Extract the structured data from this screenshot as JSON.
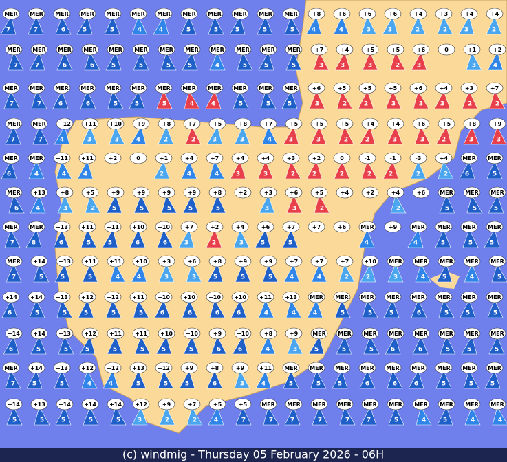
{
  "footer": "(c) windmig - Thursday 05 February 2026 - 06H",
  "palette": {
    "d": "#1f5fc8",
    "m": "#2f86e8",
    "l": "#4aa6ee",
    "r": "#e8404a",
    "n": "#1a3fb0"
  },
  "rows": [
    [
      [
        "MER",
        7,
        "d"
      ],
      [
        "MER",
        7,
        "d"
      ],
      [
        "MER",
        6,
        "d"
      ],
      [
        "MER",
        5,
        "d"
      ],
      [
        "MER",
        5,
        "d"
      ],
      [
        "MER",
        4,
        "m"
      ],
      [
        "MER",
        4,
        "m"
      ],
      [
        "MER",
        5,
        "d"
      ],
      [
        "MER",
        5,
        "d"
      ],
      [
        "MER",
        5,
        "d"
      ],
      [
        "MER",
        5,
        "d"
      ],
      [
        "MER",
        5,
        "d"
      ],
      [
        "+8",
        4,
        "m"
      ],
      [
        "+6",
        4,
        "m"
      ],
      [
        "+6",
        3,
        "l"
      ],
      [
        "+6",
        3,
        "l"
      ],
      [
        "+4",
        2,
        "l"
      ],
      [
        "+3",
        2,
        "l"
      ],
      [
        "+4",
        3,
        "l"
      ],
      [
        "+4",
        2,
        "l"
      ]
    ],
    [
      [
        "MER",
        7,
        "d"
      ],
      [
        "MER",
        7,
        "d"
      ],
      [
        "MER",
        6,
        "d"
      ],
      [
        "MER",
        6,
        "d"
      ],
      [
        "MER",
        5,
        "d"
      ],
      [
        "MER",
        5,
        "d"
      ],
      [
        "MER",
        5,
        "d"
      ],
      [
        "MER",
        5,
        "d"
      ],
      [
        "MER",
        4,
        "m"
      ],
      [
        "MER",
        5,
        "d"
      ],
      [
        "MER",
        5,
        "d"
      ],
      [
        "MER",
        5,
        "d"
      ],
      [
        "+7",
        3,
        "r"
      ],
      [
        "+4",
        3,
        "r"
      ],
      [
        "+5",
        3,
        "r"
      ],
      [
        "+5",
        2,
        "r"
      ],
      [
        "+6",
        3,
        "r"
      ],
      [
        "0",
        null,
        "n"
      ],
      [
        "+1",
        3,
        "l"
      ],
      [
        "+2",
        4,
        "m"
      ]
    ],
    [
      [
        "MER",
        7,
        "d"
      ],
      [
        "MER",
        7,
        "d"
      ],
      [
        "MER",
        6,
        "d"
      ],
      [
        "MER",
        6,
        "d"
      ],
      [
        "MER",
        5,
        "d"
      ],
      [
        "MER",
        5,
        "d"
      ],
      [
        "MER",
        5,
        "r"
      ],
      [
        "MER",
        4,
        "r"
      ],
      [
        "MER",
        4,
        "r"
      ],
      [
        "MER",
        5,
        "d"
      ],
      [
        "MER",
        5,
        "d"
      ],
      [
        "MER",
        5,
        "d"
      ],
      [
        "+6",
        3,
        "r"
      ],
      [
        "+5",
        2,
        "r"
      ],
      [
        "+5",
        2,
        "r"
      ],
      [
        "+5",
        3,
        "r"
      ],
      [
        "+6",
        3,
        "r"
      ],
      [
        "+4",
        3,
        "r"
      ],
      [
        "+3",
        2,
        "r"
      ],
      [
        "+7",
        2,
        "r"
      ]
    ],
    [
      [
        "MER",
        7,
        "d"
      ],
      [
        "MER",
        7,
        "d"
      ],
      [
        "+12",
        4,
        "m"
      ],
      [
        "+11",
        3,
        "l"
      ],
      [
        "+10",
        3,
        "l"
      ],
      [
        "+9",
        4,
        "m"
      ],
      [
        "+8",
        2,
        "l"
      ],
      [
        "+7",
        2,
        "r"
      ],
      [
        "+5",
        3,
        "l"
      ],
      [
        "+8",
        3,
        "l"
      ],
      [
        "+7",
        4,
        "m"
      ],
      [
        "+5",
        3,
        "r"
      ],
      [
        "+5",
        3,
        "r"
      ],
      [
        "+5",
        2,
        "r"
      ],
      [
        "+4",
        2,
        "r"
      ],
      [
        "+4",
        3,
        "r"
      ],
      [
        "+6",
        3,
        "r"
      ],
      [
        "+5",
        2,
        "r"
      ],
      [
        "+8",
        3,
        "r"
      ],
      [
        "+9",
        3,
        "r"
      ]
    ],
    [
      [
        "MER",
        6,
        "d"
      ],
      [
        "MER",
        4,
        "m"
      ],
      [
        "+11",
        4,
        "m"
      ],
      [
        "+11",
        4,
        "m"
      ],
      [
        "+2",
        null,
        "n"
      ],
      [
        "0",
        null,
        "n"
      ],
      [
        "+1",
        2,
        "l"
      ],
      [
        "+4",
        4,
        "m"
      ],
      [
        "+7",
        4,
        "m"
      ],
      [
        "+4",
        3,
        "r"
      ],
      [
        "+4",
        3,
        "r"
      ],
      [
        "+3",
        2,
        "r"
      ],
      [
        "+2",
        2,
        "r"
      ],
      [
        "0",
        2,
        "r"
      ],
      [
        "-1",
        2,
        "r"
      ],
      [
        "-1",
        2,
        "r"
      ],
      [
        "-3",
        2,
        "l"
      ],
      [
        "+4",
        2,
        "l"
      ],
      [
        "MER",
        6,
        "d"
      ],
      [
        "MER",
        5,
        "d"
      ]
    ],
    [
      [
        "MER",
        6,
        "d"
      ],
      [
        "+13",
        4,
        "m"
      ],
      [
        "+8",
        3,
        "l"
      ],
      [
        "+5",
        2,
        "l"
      ],
      [
        "+9",
        5,
        "d"
      ],
      [
        "+9",
        5,
        "d"
      ],
      [
        "+9",
        5,
        "d"
      ],
      [
        "+9",
        5,
        "d"
      ],
      [
        "+8",
        5,
        "d"
      ],
      [
        "+2",
        null,
        "n"
      ],
      [
        "+3",
        3,
        "l"
      ],
      [
        "+6",
        3,
        "r"
      ],
      [
        "+5",
        2,
        "r"
      ],
      [
        "+4",
        null,
        "n"
      ],
      [
        "+2",
        null,
        "n"
      ],
      [
        "+4",
        2,
        "l"
      ],
      [
        "+6",
        null,
        "n"
      ],
      [
        "MER",
        5,
        "d"
      ],
      [
        "MER",
        5,
        "d"
      ],
      [
        "MER",
        5,
        "d"
      ]
    ],
    [
      [
        "MER",
        7,
        "d"
      ],
      [
        "MER",
        8,
        "d"
      ],
      [
        "+13",
        6,
        "d"
      ],
      [
        "+11",
        5,
        "d"
      ],
      [
        "+11",
        5,
        "d"
      ],
      [
        "+10",
        6,
        "d"
      ],
      [
        "+10",
        6,
        "d"
      ],
      [
        "+7",
        3,
        "l"
      ],
      [
        "+2",
        2,
        "r"
      ],
      [
        "+4",
        3,
        "l"
      ],
      [
        "+6",
        5,
        "d"
      ],
      [
        "+7",
        5,
        "d"
      ],
      [
        "+7",
        null,
        "n"
      ],
      [
        "+6",
        null,
        "n"
      ],
      [
        "MER",
        4,
        "m"
      ],
      [
        "+9",
        null,
        "n"
      ],
      [
        "MER",
        4,
        "m"
      ],
      [
        "MER",
        5,
        "d"
      ],
      [
        "MER",
        5,
        "d"
      ],
      [
        "MER",
        5,
        "d"
      ]
    ],
    [
      [
        "MER",
        7,
        "d"
      ],
      [
        "+14",
        5,
        "d"
      ],
      [
        "+13",
        5,
        "d"
      ],
      [
        "+11",
        5,
        "d"
      ],
      [
        "+11",
        4,
        "m"
      ],
      [
        "+10",
        4,
        "m"
      ],
      [
        "+3",
        3,
        "l"
      ],
      [
        "+6",
        3,
        "l"
      ],
      [
        "+8",
        5,
        "d"
      ],
      [
        "+9",
        5,
        "d"
      ],
      [
        "+9",
        5,
        "d"
      ],
      [
        "+7",
        4,
        "m"
      ],
      [
        "+7",
        4,
        "m"
      ],
      [
        "+7",
        2,
        "l"
      ],
      [
        "+10",
        2,
        "l"
      ],
      [
        "MER",
        3,
        "l"
      ],
      [
        "MER",
        4,
        "m"
      ],
      [
        "MER",
        5,
        "d"
      ],
      [
        "MER",
        4,
        "m"
      ],
      [
        "MER",
        5,
        "d"
      ]
    ],
    [
      [
        "+14",
        6,
        "d"
      ],
      [
        "+14",
        5,
        "d"
      ],
      [
        "+13",
        5,
        "d"
      ],
      [
        "+12",
        5,
        "d"
      ],
      [
        "+12",
        5,
        "d"
      ],
      [
        "+11",
        5,
        "d"
      ],
      [
        "+10",
        6,
        "d"
      ],
      [
        "+10",
        6,
        "d"
      ],
      [
        "+10",
        6,
        "d"
      ],
      [
        "+10",
        6,
        "d"
      ],
      [
        "+11",
        4,
        "m"
      ],
      [
        "+13",
        4,
        "m"
      ],
      [
        "MER",
        4,
        "m"
      ],
      [
        "MER",
        5,
        "d"
      ],
      [
        "MER",
        5,
        "d"
      ],
      [
        "MER",
        5,
        "d"
      ],
      [
        "MER",
        6,
        "d"
      ],
      [
        "MER",
        5,
        "d"
      ],
      [
        "MER",
        5,
        "d"
      ],
      [
        "MER",
        5,
        "d"
      ]
    ],
    [
      [
        "+14",
        6,
        "d"
      ],
      [
        "+14",
        5,
        "d"
      ],
      [
        "+13",
        5,
        "d"
      ],
      [
        "+12",
        5,
        "d"
      ],
      [
        "+11",
        5,
        "d"
      ],
      [
        "+11",
        5,
        "d"
      ],
      [
        "+10",
        5,
        "d"
      ],
      [
        "+10",
        5,
        "d"
      ],
      [
        "+9",
        6,
        "d"
      ],
      [
        "+10",
        6,
        "d"
      ],
      [
        "+8",
        4,
        "m"
      ],
      [
        "+9",
        3,
        "l"
      ],
      [
        "MER",
        5,
        "d"
      ],
      [
        "MER",
        5,
        "d"
      ],
      [
        "MER",
        5,
        "d"
      ],
      [
        "MER",
        6,
        "d"
      ],
      [
        "MER",
        6,
        "d"
      ],
      [
        "MER",
        5,
        "d"
      ],
      [
        "MER",
        5,
        "d"
      ],
      [
        "MER",
        5,
        "d"
      ]
    ],
    [
      [
        "MER",
        7,
        "d"
      ],
      [
        "+14",
        5,
        "d"
      ],
      [
        "+13",
        5,
        "d"
      ],
      [
        "+12",
        4,
        "m"
      ],
      [
        "+12",
        4,
        "m"
      ],
      [
        "+13",
        5,
        "d"
      ],
      [
        "+12",
        5,
        "d"
      ],
      [
        "+9",
        5,
        "d"
      ],
      [
        "+8",
        6,
        "d"
      ],
      [
        "+9",
        3,
        "l"
      ],
      [
        "+11",
        4,
        "m"
      ],
      [
        "MER",
        5,
        "d"
      ],
      [
        "MER",
        5,
        "d"
      ],
      [
        "MER",
        5,
        "d"
      ],
      [
        "MER",
        6,
        "d"
      ],
      [
        "MER",
        6,
        "d"
      ],
      [
        "MER",
        6,
        "d"
      ],
      [
        "MER",
        5,
        "d"
      ],
      [
        "MER",
        5,
        "d"
      ],
      [
        "MER",
        5,
        "d"
      ]
    ],
    [
      [
        "+14",
        5,
        "d"
      ],
      [
        "+13",
        5,
        "d"
      ],
      [
        "+14",
        5,
        "d"
      ],
      [
        "+14",
        5,
        "d"
      ],
      [
        "+14",
        5,
        "d"
      ],
      [
        "+12",
        3,
        "l"
      ],
      [
        "+9",
        2,
        "l"
      ],
      [
        "+7",
        2,
        "l"
      ],
      [
        "+5",
        4,
        "m"
      ],
      [
        "+5",
        7,
        "d"
      ],
      [
        "MER",
        7,
        "d"
      ],
      [
        "MER",
        7,
        "d"
      ],
      [
        "MER",
        7,
        "d"
      ],
      [
        "MER",
        7,
        "d"
      ],
      [
        "MER",
        7,
        "d"
      ],
      [
        "MER",
        5,
        "d"
      ],
      [
        "MER",
        4,
        "m"
      ],
      [
        "MER",
        5,
        "d"
      ],
      [
        "MER",
        4,
        "m"
      ],
      [
        "MER",
        4,
        "m"
      ]
    ]
  ]
}
